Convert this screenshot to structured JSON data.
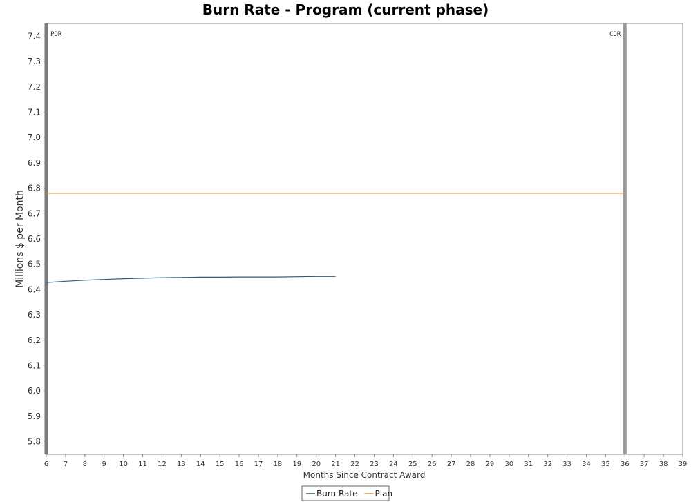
{
  "chart_data": {
    "type": "line",
    "title": "Burn Rate - Program (current phase)",
    "xlabel": "Months Since Contract Award",
    "ylabel": "Millions $ per Month",
    "xlim": [
      6,
      39
    ],
    "ylim": [
      5.75,
      7.45
    ],
    "x_ticks": [
      6,
      7,
      8,
      9,
      10,
      11,
      12,
      13,
      14,
      15,
      16,
      17,
      18,
      19,
      20,
      21,
      22,
      23,
      24,
      25,
      26,
      27,
      28,
      29,
      30,
      31,
      32,
      33,
      34,
      35,
      36,
      37,
      38,
      39
    ],
    "y_ticks": [
      5.8,
      5.9,
      6.0,
      6.1,
      6.2,
      6.3,
      6.4,
      6.5,
      6.6,
      6.7,
      6.8,
      6.9,
      7.0,
      7.1,
      7.2,
      7.3,
      7.4
    ],
    "grid": false,
    "legend": "bottom-center",
    "series": [
      {
        "name": "Burn Rate",
        "color": "#2f5d74",
        "x": [
          6,
          7,
          8,
          9,
          10,
          11,
          12,
          13,
          14,
          15,
          16,
          17,
          18,
          19,
          20,
          21
        ],
        "y": [
          6.428,
          6.433,
          6.437,
          6.44,
          6.443,
          6.445,
          6.447,
          6.448,
          6.449,
          6.449,
          6.45,
          6.45,
          6.45,
          6.451,
          6.452,
          6.452
        ]
      },
      {
        "name": "Plan",
        "color": "#d99a46",
        "x": [
          6,
          36
        ],
        "y": [
          6.78,
          6.78
        ]
      }
    ],
    "markers": [
      {
        "label": "PDR",
        "x": 6,
        "color": "#7a7a7a"
      },
      {
        "label": "CDR",
        "x": 36,
        "color": "#999999"
      }
    ]
  }
}
